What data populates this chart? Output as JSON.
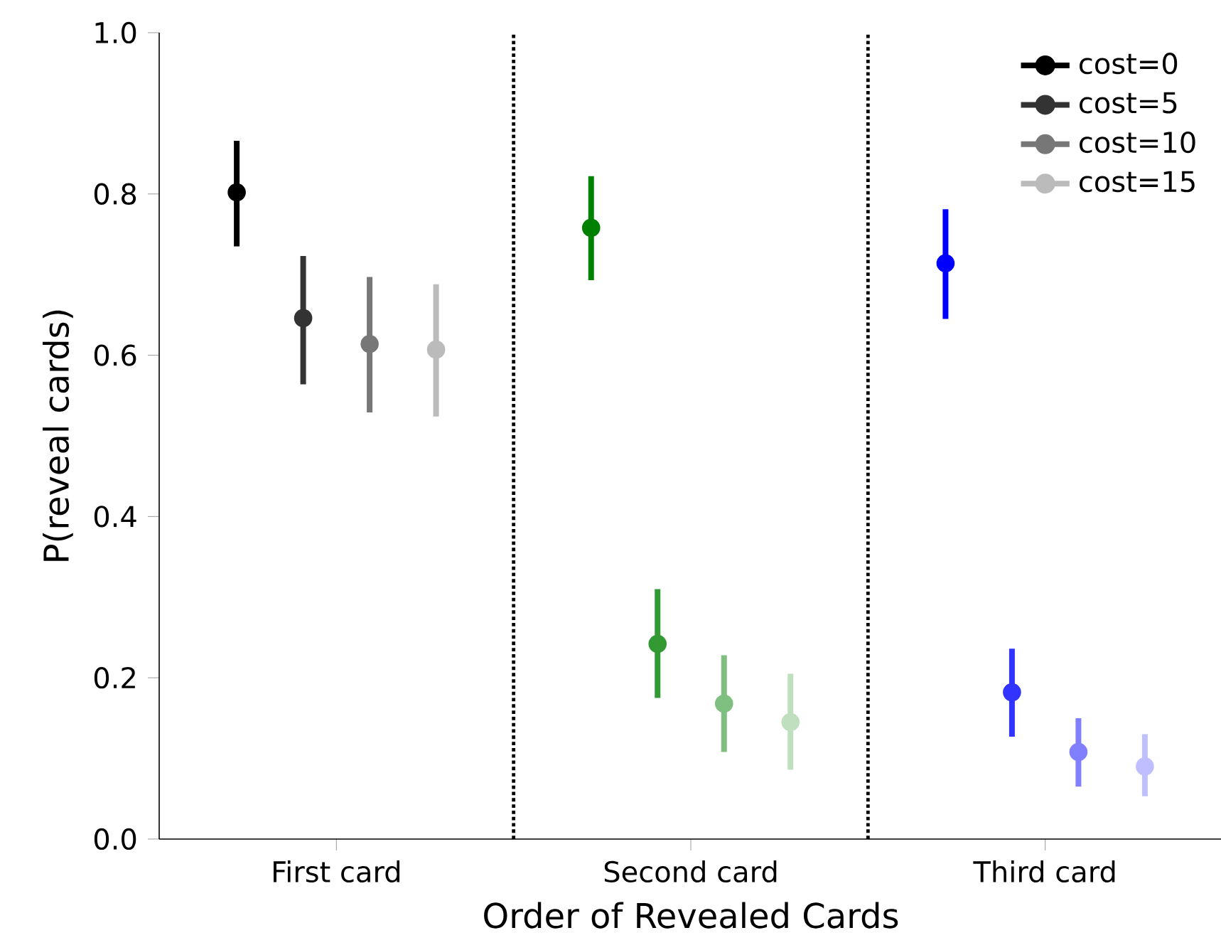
{
  "chart_data": {
    "type": "scatter",
    "xlabel": "Order of Revealed Cards",
    "ylabel": "P(reveal cards)",
    "categories": [
      "First card",
      "Second card",
      "Third card"
    ],
    "ylim": [
      0,
      1.0
    ],
    "yticks": [
      {
        "value": 0,
        "label": "0.0"
      },
      0.2,
      0.4,
      0.6,
      0.8,
      {
        "value": 1,
        "label": "1.0"
      }
    ],
    "marker": "circle",
    "legend": "top right",
    "grid": false,
    "series": [
      {
        "name": "cost=0",
        "color": "#000000",
        "colors": [
          "#000000",
          "#008000",
          "#0000ff"
        ],
        "values": [
          0.802,
          0.758,
          0.714
        ],
        "errors": [
          [
            0.735,
            0.866
          ],
          [
            0.693,
            0.822
          ],
          [
            0.645,
            0.781
          ]
        ]
      },
      {
        "name": "cost=5",
        "color": "#333333",
        "colors": [
          "#333333",
          "#339933",
          "#3333ff"
        ],
        "values": [
          0.646,
          0.242,
          0.182
        ],
        "errors": [
          [
            0.564,
            0.723
          ],
          [
            0.175,
            0.31
          ],
          [
            0.127,
            0.236
          ]
        ]
      },
      {
        "name": "cost=10",
        "color": "#777777",
        "colors": [
          "#777777",
          "#7fbf7f",
          "#7f7fff"
        ],
        "values": [
          0.614,
          0.168,
          0.108
        ],
        "errors": [
          [
            0.529,
            0.697
          ],
          [
            0.108,
            0.228
          ],
          [
            0.065,
            0.15
          ]
        ]
      },
      {
        "name": "cost=15",
        "color": "#bbbbbb",
        "colors": [
          "#bbbbbb",
          "#bfdfbf",
          "#bfbfff"
        ],
        "values": [
          0.607,
          0.145,
          0.09
        ],
        "errors": [
          [
            0.524,
            0.688
          ],
          [
            0.086,
            0.205
          ],
          [
            0.053,
            0.13
          ]
        ]
      }
    ]
  }
}
